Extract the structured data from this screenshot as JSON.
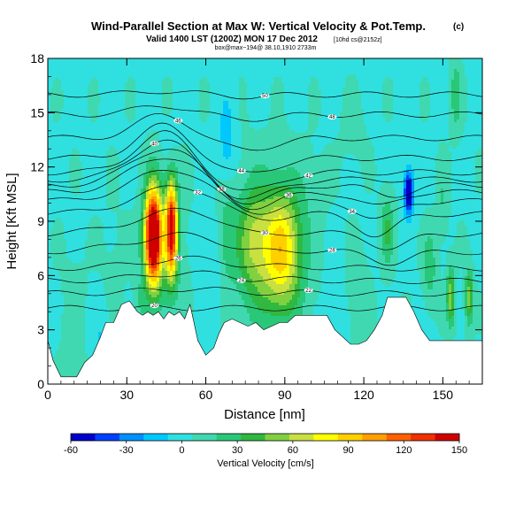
{
  "chart_data": {
    "type": "heatmap",
    "title": "Wind-Parallel Section at Max W: Vertical Velocity & Pot.Temp.",
    "title_mark": "(c)",
    "subtitle": "Valid 1400 LST (1200Z) MON 17 Dec 2012",
    "subtitle_note": "[10hd cs@2152z]",
    "subtitle2": "box@max~194@ 38.10,1910 2733m",
    "xlabel": "Distance [nm]",
    "ylabel": "Height [Kft MSL]",
    "xlim": [
      0,
      165
    ],
    "ylim": [
      0,
      18
    ],
    "x_ticks": [
      0,
      30,
      60,
      90,
      120,
      150
    ],
    "y_ticks": [
      0,
      3,
      6,
      9,
      12,
      15,
      18
    ],
    "colorbar": {
      "label": "Vertical Velocity [cm/s]",
      "ticks": [
        -60,
        -30,
        0,
        30,
        60,
        90,
        120,
        150
      ],
      "min": -60,
      "max": 150,
      "colors": [
        "#0000cc",
        "#0040ff",
        "#0090ff",
        "#00c8ff",
        "#30e0e0",
        "#40d8b0",
        "#28c878",
        "#30b840",
        "#80d040",
        "#c8e040",
        "#ffff00",
        "#ffd000",
        "#ffa000",
        "#ff6000",
        "#f03000",
        "#d00000"
      ]
    },
    "terrain": [
      [
        0,
        2.4
      ],
      [
        2,
        1.3
      ],
      [
        5,
        0.4
      ],
      [
        8,
        0.4
      ],
      [
        11,
        0.4
      ],
      [
        14,
        1.2
      ],
      [
        17,
        1.6
      ],
      [
        20,
        2.6
      ],
      [
        22,
        3.4
      ],
      [
        25,
        3.4
      ],
      [
        28,
        4.4
      ],
      [
        31,
        4.6
      ],
      [
        34,
        4.0
      ],
      [
        36,
        3.8
      ],
      [
        38,
        4.0
      ],
      [
        40,
        3.8
      ],
      [
        42,
        4.0
      ],
      [
        44,
        3.6
      ],
      [
        46,
        4.0
      ],
      [
        48,
        3.8
      ],
      [
        50,
        4.0
      ],
      [
        52,
        3.6
      ],
      [
        54,
        4.4
      ],
      [
        57,
        2.4
      ],
      [
        60,
        1.6
      ],
      [
        63,
        2.0
      ],
      [
        65,
        2.8
      ],
      [
        67,
        3.4
      ],
      [
        70,
        3.6
      ],
      [
        73,
        3.4
      ],
      [
        76,
        3.2
      ],
      [
        79,
        3.4
      ],
      [
        82,
        3.0
      ],
      [
        85,
        3.2
      ],
      [
        88,
        3.4
      ],
      [
        91,
        3.4
      ],
      [
        94,
        3.8
      ],
      [
        97,
        3.8
      ],
      [
        100,
        3.8
      ],
      [
        103,
        3.8
      ],
      [
        106,
        3.8
      ],
      [
        109,
        3.0
      ],
      [
        112,
        2.6
      ],
      [
        115,
        2.2
      ],
      [
        118,
        2.2
      ],
      [
        121,
        2.4
      ],
      [
        124,
        3.0
      ],
      [
        127,
        3.8
      ],
      [
        129,
        4.8
      ],
      [
        132,
        4.8
      ],
      [
        136,
        4.8
      ],
      [
        139,
        4.0
      ],
      [
        142,
        3.0
      ],
      [
        145,
        2.4
      ],
      [
        150,
        2.4
      ],
      [
        155,
        2.4
      ],
      [
        160,
        2.4
      ],
      [
        165,
        2.4
      ]
    ],
    "w_features": [
      {
        "x": 40,
        "y": 8.2,
        "sx": 3.2,
        "sy": 2.6,
        "w": 175
      },
      {
        "x": 47,
        "y": 8.6,
        "sx": 2.2,
        "sy": 2.6,
        "w": 135
      },
      {
        "x": 44,
        "y": 7.5,
        "sx": 7,
        "sy": 4,
        "w": 22
      },
      {
        "x": 35,
        "y": 4.5,
        "sx": 2.5,
        "sy": 1.5,
        "w": 12
      },
      {
        "x": 89,
        "y": 7.4,
        "sx": 7,
        "sy": 3.2,
        "w": 70
      },
      {
        "x": 78,
        "y": 8.0,
        "sx": 6,
        "sy": 3.0,
        "w": 38
      },
      {
        "x": 84,
        "y": 7.0,
        "sx": 14,
        "sy": 4.5,
        "w": 22
      },
      {
        "x": 68,
        "y": 8.3,
        "sx": 3,
        "sy": 2.5,
        "w": 20
      },
      {
        "x": 62,
        "y": 5.5,
        "sx": 4,
        "sy": 3.5,
        "w": -12
      },
      {
        "x": 68,
        "y": 13.5,
        "sx": 3,
        "sy": 2.5,
        "w": -20
      },
      {
        "x": 46,
        "y": 13,
        "sx": 3,
        "sy": 1.5,
        "w": -8
      },
      {
        "x": 137,
        "y": 10.6,
        "sx": 1.8,
        "sy": 1.2,
        "w": -75
      },
      {
        "x": 129,
        "y": 8.5,
        "sx": 2.5,
        "sy": 2.0,
        "w": 30
      },
      {
        "x": 145,
        "y": 6.5,
        "sx": 2.5,
        "sy": 2.0,
        "w": 25
      },
      {
        "x": 153,
        "y": 4.8,
        "sx": 1.6,
        "sy": 1.6,
        "w": 50
      },
      {
        "x": 160,
        "y": 4.8,
        "sx": 1.5,
        "sy": 1.5,
        "w": 50
      },
      {
        "x": 118,
        "y": 5.0,
        "sx": 4,
        "sy": 2.5,
        "w": 12
      },
      {
        "x": 108,
        "y": 5.5,
        "sx": 3,
        "sy": 2.2,
        "w": -8
      },
      {
        "x": 10,
        "y": 3,
        "sx": 5,
        "sy": 4,
        "w": 8
      },
      {
        "x": 20,
        "y": 2.5,
        "sx": 4,
        "sy": 2,
        "w": -12
      },
      {
        "x": 25,
        "y": 6,
        "sx": 5,
        "sy": 4,
        "w": 5
      },
      {
        "x": 155,
        "y": 16,
        "sx": 2,
        "sy": 2,
        "w": 25
      },
      {
        "x": 150,
        "y": 10,
        "sx": 2,
        "sy": 2,
        "w": 15
      },
      {
        "x": 116,
        "y": 14,
        "sx": 5,
        "sy": 2,
        "w": 6
      },
      {
        "x": 100,
        "y": 11,
        "sx": 6,
        "sy": 2,
        "w": 6
      }
    ],
    "isentropes": [
      {
        "label": "20",
        "y0": 4.2,
        "amp": 0.0,
        "xc": 60,
        "w": 30,
        "dips": []
      },
      {
        "label": "22",
        "y0": 5.0,
        "amp": 0.3,
        "xc": 60,
        "w": 30,
        "dips": []
      },
      {
        "label": "24",
        "y0": 5.7,
        "amp": 0.5,
        "xc": 60,
        "w": 30,
        "dips": []
      },
      {
        "label": "26",
        "y0": 6.4,
        "amp": 0.6,
        "xc": 60,
        "w": 30,
        "dips": []
      },
      {
        "label": "28",
        "y0": 7.3,
        "amp": 1.0,
        "xc": 55,
        "w": 30,
        "dips": [
          [
            130,
            -0.6
          ]
        ]
      },
      {
        "label": "30",
        "y0": 8.3,
        "amp": 1.4,
        "xc": 55,
        "w": 28,
        "dips": [
          [
            130,
            -0.8
          ]
        ]
      },
      {
        "label": "32",
        "y0": 9.4,
        "amp": 1.6,
        "xc": 52,
        "w": 25,
        "dips": [
          [
            125,
            -1.2
          ]
        ]
      },
      {
        "label": "34",
        "y0": 10.1,
        "amp": 1.8,
        "xc": 48,
        "w": 22,
        "dips": [
          [
            125,
            -1.0
          ]
        ]
      },
      {
        "label": "36",
        "y0": 10.6,
        "amp": 2.0,
        "xc": 46,
        "w": 20,
        "dips": [
          [
            125,
            -0.8
          ]
        ]
      },
      {
        "label": "38",
        "y0": 11.0,
        "amp": 2.1,
        "xc": 45,
        "w": 18,
        "dips": [
          [
            130,
            -0.6
          ]
        ]
      },
      {
        "label": "40",
        "y0": 11.3,
        "amp": 2.2,
        "xc": 44,
        "w": 16,
        "dips": []
      },
      {
        "label": "42",
        "y0": 11.7,
        "amp": 2.2,
        "xc": 44,
        "w": 15,
        "dips": []
      },
      {
        "label": "44",
        "y0": 12.5,
        "amp": 1.8,
        "xc": 44,
        "w": 14,
        "dips": []
      },
      {
        "label": "46",
        "y0": 13.6,
        "amp": 1.3,
        "xc": 44,
        "w": 14,
        "dips": []
      },
      {
        "label": "48",
        "y0": 14.9,
        "amp": 0.5,
        "xc": 44,
        "w": 14,
        "dips": []
      },
      {
        "label": "50",
        "y0": 16.0,
        "amp": 0.2,
        "xc": 44,
        "w": 14,
        "dips": []
      }
    ]
  }
}
